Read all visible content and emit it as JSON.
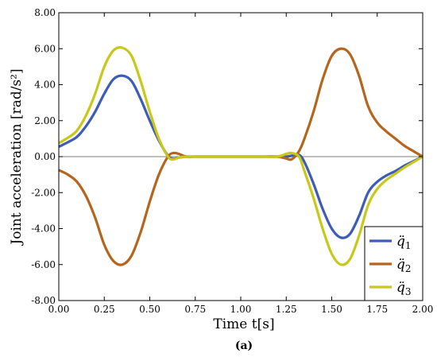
{
  "chart_data": {
    "type": "line",
    "title": "",
    "xlabel": "Time t[s]",
    "ylabel": "Joint acceleration [rad/s²]",
    "xlim": [
      0,
      2
    ],
    "ylim": [
      -8,
      8
    ],
    "x_ticks": [
      "0.00",
      "0.25",
      "0.50",
      "0.75",
      "1.00",
      "1.25",
      "1.50",
      "1.75",
      "2.00"
    ],
    "y_ticks": [
      "-8.00",
      "-6.00",
      "-4.00",
      "-2.00",
      "0.00",
      "2.00",
      "4.00",
      "6.00",
      "8.00"
    ],
    "grid": false,
    "legend_position": "bottom-right",
    "caption": "(a)",
    "x": [
      0,
      0.05,
      0.1,
      0.15,
      0.2,
      0.25,
      0.3,
      0.35,
      0.4,
      0.45,
      0.5,
      0.55,
      0.6,
      0.63,
      0.66,
      0.7,
      0.75,
      0.8,
      0.9,
      1.0,
      1.1,
      1.2,
      1.25,
      1.28,
      1.32,
      1.35,
      1.4,
      1.45,
      1.5,
      1.55,
      1.6,
      1.65,
      1.7,
      1.75,
      1.8,
      1.85,
      1.9,
      1.95,
      2.0
    ],
    "series": [
      {
        "name": "q̈",
        "subscript": "1",
        "color": "#3d5cb8",
        "values": [
          0.55,
          0.8,
          1.1,
          1.7,
          2.5,
          3.5,
          4.3,
          4.5,
          4.2,
          3.2,
          2.0,
          0.9,
          0.05,
          -0.12,
          -0.05,
          0.0,
          0.0,
          0.0,
          0.0,
          0.0,
          0.0,
          0.0,
          0.0,
          0.05,
          0.1,
          -0.3,
          -1.5,
          -2.9,
          -4.0,
          -4.5,
          -4.3,
          -3.3,
          -2.0,
          -1.4,
          -1.05,
          -0.8,
          -0.5,
          -0.25,
          0.0
        ]
      },
      {
        "name": "q̈",
        "subscript": "2",
        "color": "#b5651d",
        "values": [
          -0.75,
          -1.0,
          -1.4,
          -2.2,
          -3.4,
          -4.9,
          -5.8,
          -6.0,
          -5.5,
          -4.2,
          -2.5,
          -1.0,
          0.0,
          0.2,
          0.15,
          0.0,
          0.0,
          0.0,
          0.0,
          0.0,
          0.0,
          0.0,
          -0.1,
          -0.15,
          0.3,
          1.0,
          2.5,
          4.3,
          5.6,
          6.0,
          5.7,
          4.5,
          2.8,
          1.9,
          1.4,
          1.0,
          0.6,
          0.3,
          0.0
        ]
      },
      {
        "name": "q̈",
        "subscript": "3",
        "color": "#c8c81a",
        "values": [
          0.75,
          1.05,
          1.45,
          2.3,
          3.5,
          5.0,
          5.9,
          6.05,
          5.6,
          4.2,
          2.5,
          1.0,
          0.0,
          -0.15,
          -0.05,
          0.0,
          0.0,
          0.0,
          0.0,
          0.0,
          0.0,
          0.0,
          0.15,
          0.2,
          0.0,
          -0.8,
          -2.3,
          -4.0,
          -5.4,
          -6.0,
          -5.7,
          -4.4,
          -2.7,
          -1.8,
          -1.3,
          -0.95,
          -0.6,
          -0.3,
          0.0
        ]
      }
    ]
  }
}
